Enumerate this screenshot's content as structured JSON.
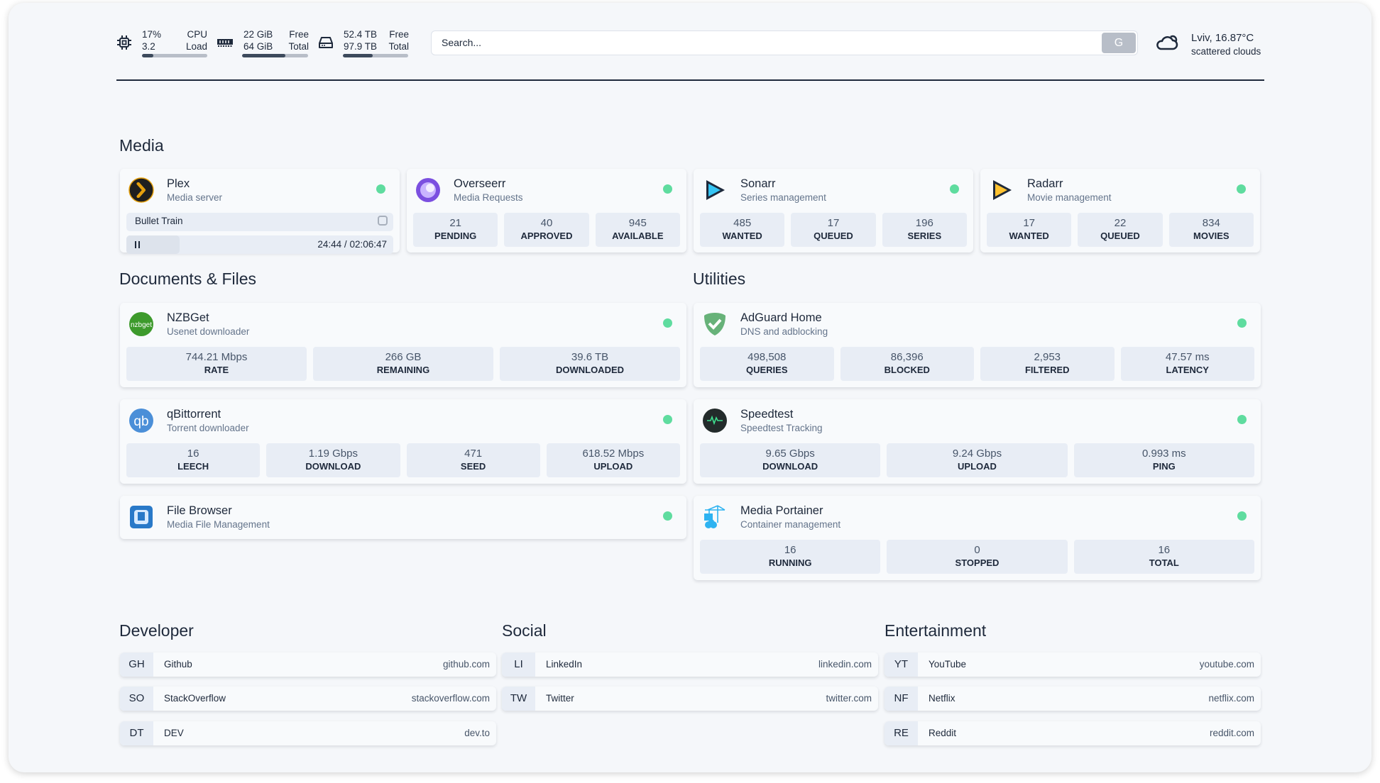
{
  "header": {
    "cpu": {
      "icon": "cpu-icon",
      "value": "17%",
      "value_label": "CPU",
      "sub": "3.2",
      "sub_label": "Load",
      "usage": 0.17
    },
    "memory": {
      "icon": "memory-icon",
      "value": "22 GiB",
      "value_label": "Free",
      "sub": "64 GiB",
      "sub_label": "Total",
      "usage": 0.66
    },
    "disk": {
      "icon": "disk-icon",
      "value": "52.4 TB",
      "value_label": "Free",
      "sub": "97.9 TB",
      "sub_label": "Total",
      "usage": 0.46
    },
    "search": {
      "placeholder": "Search...",
      "button": "G"
    },
    "weather": {
      "icon": "cloud-sun-icon",
      "location_temp": "Lviv, 16.87°C",
      "condition": "scattered clouds"
    }
  },
  "colors": {
    "status_ok": "#5fdc9f",
    "stat_bg": "#e8edf5",
    "bar_fill": "#3d4a5c"
  },
  "sections": {
    "media": "Media",
    "documents": "Documents & Files",
    "utilities": "Utilities",
    "developer": "Developer",
    "social": "Social",
    "entertainment": "Entertainment"
  },
  "media": [
    {
      "name": "Plex",
      "desc": "Media server",
      "icon": "plex-icon",
      "now_playing": {
        "title": "Bullet Train",
        "position": "24:44",
        "duration": "02:06:47",
        "progress": 0.2
      }
    },
    {
      "name": "Overseerr",
      "desc": "Media Requests",
      "icon": "overseerr-icon",
      "stats": [
        {
          "v": "21",
          "l": "PENDING"
        },
        {
          "v": "40",
          "l": "APPROVED"
        },
        {
          "v": "945",
          "l": "AVAILABLE"
        }
      ]
    },
    {
      "name": "Sonarr",
      "desc": "Series management",
      "icon": "sonarr-icon",
      "stats": [
        {
          "v": "485",
          "l": "WANTED"
        },
        {
          "v": "17",
          "l": "QUEUED"
        },
        {
          "v": "196",
          "l": "SERIES"
        }
      ]
    },
    {
      "name": "Radarr",
      "desc": "Movie management",
      "icon": "radarr-icon",
      "stats": [
        {
          "v": "17",
          "l": "WANTED"
        },
        {
          "v": "22",
          "l": "QUEUED"
        },
        {
          "v": "834",
          "l": "MOVIES"
        }
      ]
    }
  ],
  "documents": [
    {
      "name": "NZBGet",
      "desc": "Usenet downloader",
      "icon": "nzbget-icon",
      "stats": [
        {
          "v": "744.21 Mbps",
          "l": "RATE"
        },
        {
          "v": "266 GB",
          "l": "REMAINING"
        },
        {
          "v": "39.6 TB",
          "l": "DOWNLOADED"
        }
      ]
    },
    {
      "name": "qBittorrent",
      "desc": "Torrent downloader",
      "icon": "qbittorrent-icon",
      "stats": [
        {
          "v": "16",
          "l": "LEECH"
        },
        {
          "v": "1.19 Gbps",
          "l": "DOWNLOAD"
        },
        {
          "v": "471",
          "l": "SEED"
        },
        {
          "v": "618.52 Mbps",
          "l": "UPLOAD"
        }
      ]
    },
    {
      "name": "File Browser",
      "desc": "Media File Management",
      "icon": "file-browser-icon"
    }
  ],
  "utilities": [
    {
      "name": "AdGuard Home",
      "desc": "DNS and adblocking",
      "icon": "adguard-icon",
      "stats": [
        {
          "v": "498,508",
          "l": "QUERIES"
        },
        {
          "v": "86,396",
          "l": "BLOCKED"
        },
        {
          "v": "2,953",
          "l": "FILTERED"
        },
        {
          "v": "47.57 ms",
          "l": "LATENCY"
        }
      ]
    },
    {
      "name": "Speedtest",
      "desc": "Speedtest Tracking",
      "icon": "speedtest-icon",
      "stats": [
        {
          "v": "9.65 Gbps",
          "l": "DOWNLOAD"
        },
        {
          "v": "9.24 Gbps",
          "l": "UPLOAD"
        },
        {
          "v": "0.993 ms",
          "l": "PING"
        }
      ]
    },
    {
      "name": "Media Portainer",
      "desc": "Container management",
      "icon": "portainer-icon",
      "stats": [
        {
          "v": "16",
          "l": "RUNNING"
        },
        {
          "v": "0",
          "l": "STOPPED"
        },
        {
          "v": "16",
          "l": "TOTAL"
        }
      ]
    }
  ],
  "bookmarks": {
    "developer": [
      {
        "abbr": "GH",
        "name": "Github",
        "url": "github.com"
      },
      {
        "abbr": "SO",
        "name": "StackOverflow",
        "url": "stackoverflow.com"
      },
      {
        "abbr": "DT",
        "name": "DEV",
        "url": "dev.to"
      }
    ],
    "social": [
      {
        "abbr": "LI",
        "name": "LinkedIn",
        "url": "linkedin.com"
      },
      {
        "abbr": "TW",
        "name": "Twitter",
        "url": "twitter.com"
      }
    ],
    "entertainment": [
      {
        "abbr": "YT",
        "name": "YouTube",
        "url": "youtube.com"
      },
      {
        "abbr": "NF",
        "name": "Netflix",
        "url": "netflix.com"
      },
      {
        "abbr": "RE",
        "name": "Reddit",
        "url": "reddit.com"
      }
    ]
  }
}
